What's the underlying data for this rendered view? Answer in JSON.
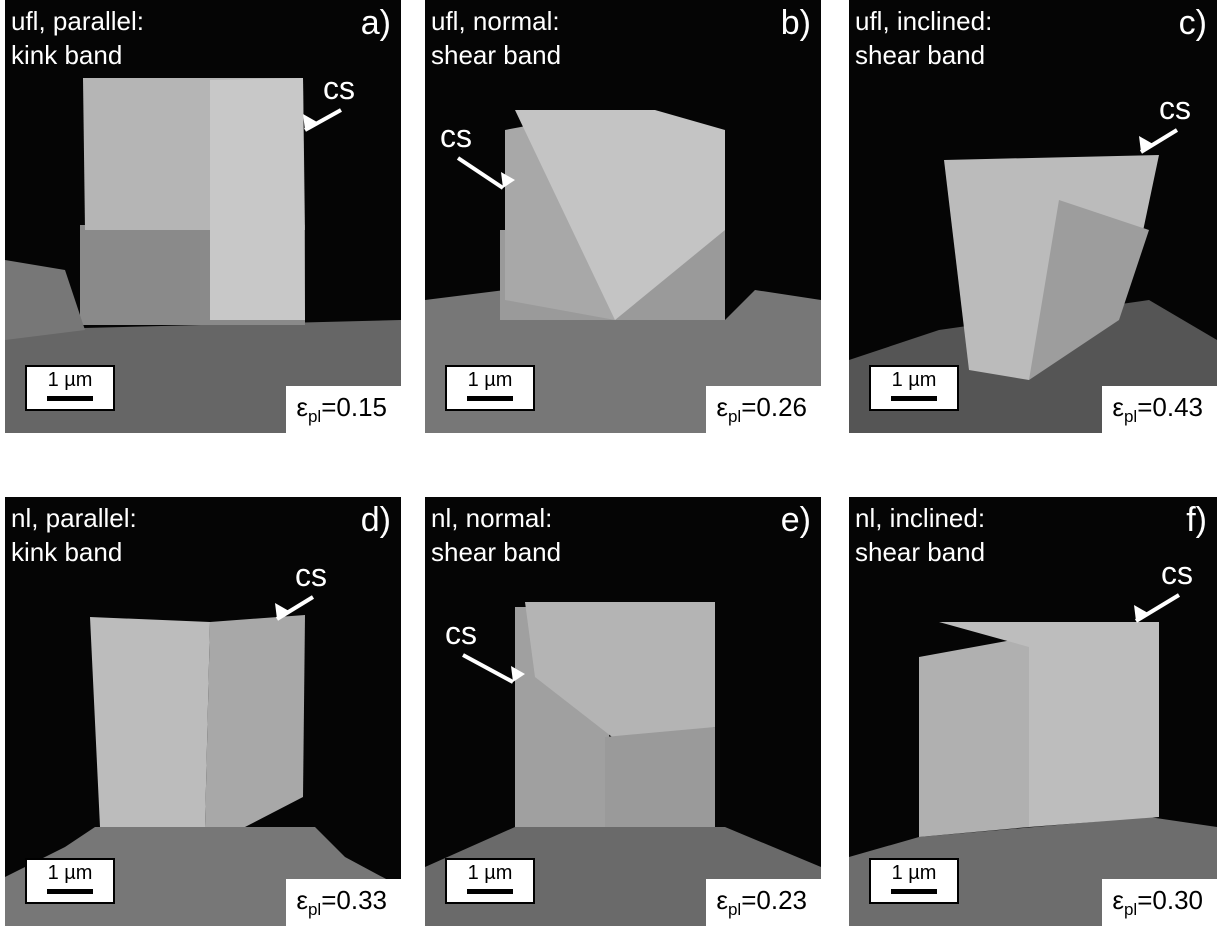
{
  "panels": [
    {
      "label": [
        "ufl, parallel:",
        "kink band"
      ],
      "letter": "a)",
      "marker": "cs",
      "scale": "1 µm",
      "strain": {
        "symbol": "ε",
        "subscript": "pl",
        "value": "=0.15"
      }
    },
    {
      "label": [
        "ufl, normal:",
        "shear band"
      ],
      "letter": "b)",
      "marker": "cs",
      "scale": "1 µm",
      "strain": {
        "symbol": "ε",
        "subscript": "pl",
        "value": "=0.26"
      }
    },
    {
      "label": [
        "ufl, inclined:",
        "shear band"
      ],
      "letter": "c)",
      "marker": "cs",
      "scale": "1 µm",
      "strain": {
        "symbol": "ε",
        "subscript": "pl",
        "value": "=0.43"
      }
    },
    {
      "label": [
        "nl, parallel:",
        "kink band"
      ],
      "letter": "d)",
      "marker": "cs",
      "scale": "1 µm",
      "strain": {
        "symbol": "ε",
        "subscript": "pl",
        "value": "=0.33"
      }
    },
    {
      "label": [
        "nl, normal:",
        "shear band"
      ],
      "letter": "e)",
      "marker": "cs",
      "scale": "1 µm",
      "strain": {
        "symbol": "ε",
        "subscript": "pl",
        "value": "=0.23"
      }
    },
    {
      "label": [
        "nl, inclined:",
        "shear band"
      ],
      "letter": "f)",
      "marker": "cs",
      "scale": "1 µm",
      "strain": {
        "symbol": "ε",
        "subscript": "pl",
        "value": "=0.30"
      }
    }
  ]
}
